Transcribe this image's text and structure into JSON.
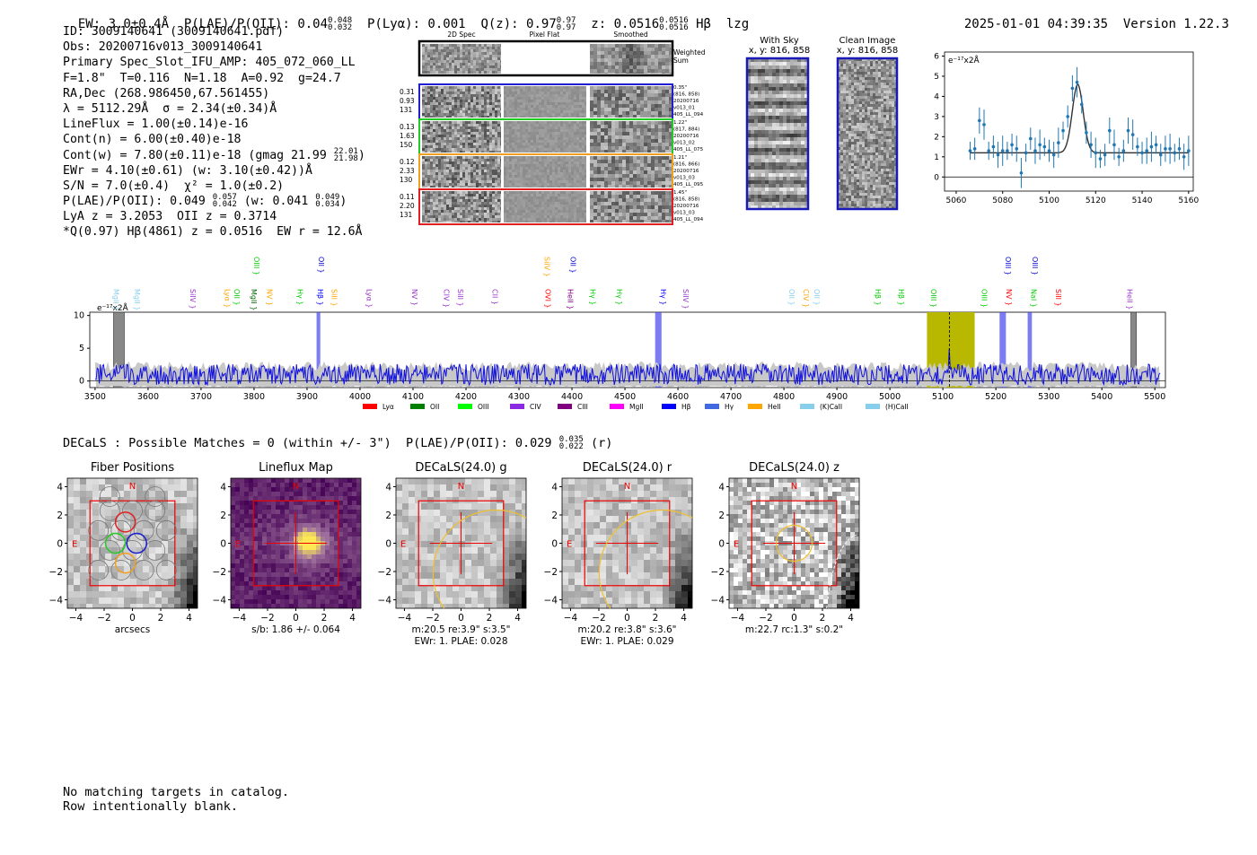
{
  "header": {
    "ew_text": "EW: 3.0±0.4Å",
    "plae_label": "P(LAE)/P(OII):",
    "plae_val": "0.04",
    "plae_hi": "0.048",
    "plae_lo": "0.032",
    "plya": "P(Lyα): 0.001",
    "qz_label": "Q(z):",
    "qz_val": "0.97",
    "qz_hi": "0.97",
    "qz_lo": "0.97",
    "z_label": "z:",
    "z_val": "0.0516",
    "z_hi": "0.0516",
    "z_lo": "0.0516",
    "z_line": "Hβ",
    "tag": "lzg",
    "timestamp": "2025-01-01 04:39:35",
    "version": "Version 1.22.3"
  },
  "info": {
    "id_line": "ID: 3009140641 (3009140641.pdf)",
    "obs_line": "Obs: 20200716v013_3009140641",
    "primary_line": "Primary Spec_Slot_IFU_AMP: 405_072_060_LL",
    "fwhm_line": "F=1.8\"  T=0.116  N=1.18  A=0.92  g=24.7",
    "radec_line": "RA,Dec (268.986450,67.561455)",
    "lambda_line": "λ = 5112.29Å  σ = 2.34(±0.34)Å",
    "lineflux_line": "LineFlux = 1.00(±0.14)e-16",
    "contn_line": "Cont(n) = 6.00(±0.40)e-18",
    "contw_line": "Cont(w) = 7.80(±0.11)e-18 (gmag 21.99",
    "contw_hi": "22.01",
    "contw_lo": "21.98",
    "contw_close": ")",
    "ewr_line": "EWr = 4.10(±0.61) (w: 3.10(±0.42))Å",
    "sn_line": "S/N = 7.0(±0.4)  χ² = 1.0(±0.2)",
    "plae_line": "P(LAE)/P(OII): 0.049",
    "plae_hi": "0.057",
    "plae_lo": "0.042",
    "plae_w": "(w: 0.041",
    "plae_w_hi": "0.049",
    "plae_w_lo": "0.034",
    "plae_close": ")",
    "lya_line": "LyA z = 3.2053  OII z = 0.3714",
    "q_line": "*Q(0.97) Hβ(4861) z = 0.0516  EW r = 12.6Å"
  },
  "cutouts": {
    "col_titles": [
      "2D Spec",
      "Pixel Flat",
      "Smoothed"
    ],
    "weighted_label": "Weighted\nSum",
    "rows": [
      {
        "nums": [
          "0.31",
          "0.93",
          "131"
        ],
        "side": [
          "0.35\"",
          "(816, 858)",
          "20200716",
          "v013_01",
          "405_LL_094"
        ],
        "color": "#1f1fd0"
      },
      {
        "nums": [
          "0.13",
          "1.63",
          "150"
        ],
        "side": [
          "1.22\"",
          "(817, 884)",
          "20200716",
          "v013_02",
          "405_LL_075"
        ],
        "color": "#22cc22"
      },
      {
        "nums": [
          "0.12",
          "2.33",
          "130"
        ],
        "side": [
          "1.21\"",
          "(816, 866)",
          "20200716",
          "v013_03",
          "405_LL_095"
        ],
        "color": "#f0a020"
      },
      {
        "nums": [
          "0.11",
          "2.20",
          "131"
        ],
        "side": [
          "1.45\"",
          "(816, 858)",
          "20200716",
          "v013_03",
          "405_LL_094"
        ],
        "color": "#e02020"
      }
    ]
  },
  "sky_panels": {
    "with_sky_title": "With Sky",
    "with_sky_xy": "x, y: 816, 858",
    "clean_title": "Clean Image",
    "clean_xy": "x, y: 816, 858"
  },
  "zoom_plot": {
    "unit_label": "e⁻¹⁷x2Å",
    "x_ticks": [
      "5060",
      "5080",
      "5100",
      "5120",
      "5140",
      "5160"
    ],
    "y_ticks": [
      "0",
      "1",
      "2",
      "3",
      "4",
      "5",
      "6"
    ]
  },
  "spectrum": {
    "unit_label": "e⁻¹⁷x2Å",
    "x_ticks": [
      "3500",
      "3600",
      "3700",
      "3800",
      "3900",
      "4000",
      "4100",
      "4200",
      "4300",
      "4400",
      "4500",
      "4600",
      "4700",
      "4800",
      "4900",
      "5000",
      "5100",
      "5200",
      "5300",
      "5400",
      "5500"
    ],
    "y_ticks": [
      "0",
      "5",
      "10"
    ],
    "legend": [
      {
        "label": "Lyα",
        "color": "#ff0000"
      },
      {
        "label": "OII",
        "color": "#008000"
      },
      {
        "label": "OIII",
        "color": "#00ff00"
      },
      {
        "label": "CIV",
        "color": "#8a2be2"
      },
      {
        "label": "CIII",
        "color": "#800080"
      },
      {
        "label": "MgII",
        "color": "#ff00ff"
      },
      {
        "label": "Hβ",
        "color": "#0000ff"
      },
      {
        "label": "Hγ",
        "color": "#4169e1"
      },
      {
        "label": "HeII",
        "color": "#ffa500"
      },
      {
        "label": "(K)CaII",
        "color": "#87ceeb"
      },
      {
        "label": "(H)CaII",
        "color": "#87ceeb"
      }
    ],
    "line_marks": [
      {
        "label": "MgII",
        "x": 3530,
        "color": "#87ceeb",
        "row": 2
      },
      {
        "label": "MgII",
        "x": 3570,
        "color": "#87ceeb",
        "row": 2
      },
      {
        "label": "SiIV",
        "x": 3675,
        "color": "#9932cc",
        "row": 2
      },
      {
        "label": "Lyα",
        "x": 3740,
        "color": "#ffa500",
        "row": 2
      },
      {
        "label": "OII",
        "x": 3758,
        "color": "#00cc00",
        "row": 2
      },
      {
        "label": "MgII",
        "x": 3790,
        "color": "#006400",
        "row": 2
      },
      {
        "label": "OIII",
        "x": 3795,
        "color": "#00cc00",
        "row": 1
      },
      {
        "label": "NV",
        "x": 3820,
        "color": "#ffa500",
        "row": 2
      },
      {
        "label": "Hγ",
        "x": 3877,
        "color": "#00cc00",
        "row": 2
      },
      {
        "label": "OII",
        "x": 3917,
        "color": "#0000cd",
        "row": 1
      },
      {
        "label": "Hβ",
        "x": 3915,
        "color": "#0000ff",
        "row": 2
      },
      {
        "label": "SiII",
        "x": 3942,
        "color": "#ffa500",
        "row": 2
      },
      {
        "label": "Lyα",
        "x": 4008,
        "color": "#9932cc",
        "row": 2
      },
      {
        "label": "NV",
        "x": 4093,
        "color": "#9932cc",
        "row": 2
      },
      {
        "label": "CIV",
        "x": 4153,
        "color": "#9932cc",
        "row": 2
      },
      {
        "label": "SiII",
        "x": 4180,
        "color": "#9932cc",
        "row": 2
      },
      {
        "label": "CII",
        "x": 4245,
        "color": "#9932cc",
        "row": 2
      },
      {
        "label": "SiIV",
        "x": 4343,
        "color": "#ffa500",
        "row": 1
      },
      {
        "label": "OVI",
        "x": 4345,
        "color": "#ff0000",
        "row": 2
      },
      {
        "label": "OII",
        "x": 4392,
        "color": "#0000cd",
        "row": 1
      },
      {
        "label": "HeII",
        "x": 4387,
        "color": "#800080",
        "row": 2
      },
      {
        "label": "Hγ",
        "x": 4430,
        "color": "#00cc00",
        "row": 2
      },
      {
        "label": "Hγ",
        "x": 4480,
        "color": "#00cc00",
        "row": 2
      },
      {
        "label": "Hγ",
        "x": 4563,
        "color": "#0000ff",
        "row": 2
      },
      {
        "label": "SiIV",
        "x": 4605,
        "color": "#9932cc",
        "row": 2
      },
      {
        "label": "OII",
        "x": 4805,
        "color": "#87ceeb",
        "row": 2
      },
      {
        "label": "CIV",
        "x": 4832,
        "color": "#ffa500",
        "row": 2
      },
      {
        "label": "OII",
        "x": 4852,
        "color": "#87ceeb",
        "row": 2
      },
      {
        "label": "Hβ",
        "x": 4968,
        "color": "#00cc00",
        "row": 2
      },
      {
        "label": "Hβ",
        "x": 5012,
        "color": "#00cc00",
        "row": 2
      },
      {
        "label": "OIII",
        "x": 5073,
        "color": "#00cc00",
        "row": 2
      },
      {
        "label": "OIII",
        "x": 5168,
        "color": "#00cc00",
        "row": 2
      },
      {
        "label": "OIII",
        "x": 5213,
        "color": "#0000cd",
        "row": 1
      },
      {
        "label": "NV",
        "x": 5215,
        "color": "#ff0000",
        "row": 2
      },
      {
        "label": "OIII",
        "x": 5264,
        "color": "#0000cd",
        "row": 1
      },
      {
        "label": "NaI",
        "x": 5262,
        "color": "#00cc00",
        "row": 2
      },
      {
        "label": "SiII",
        "x": 5308,
        "color": "#ff0000",
        "row": 2
      },
      {
        "label": "HeII",
        "x": 5443,
        "color": "#9932cc",
        "row": 2
      }
    ]
  },
  "decals": {
    "title": "DECaLS : Possible Matches = 0 (within +/- 3\")  P(LAE)/P(OII): 0.029",
    "title_hi": "0.035",
    "title_lo": "0.022",
    "title_tail": "(r)",
    "panels": [
      {
        "title": "Fiber Positions",
        "caption1": "arcsecs",
        "caption2": ""
      },
      {
        "title": "Lineflux Map",
        "caption1": "s/b: 1.86 +/- 0.064",
        "caption2": ""
      },
      {
        "title": "DECaLS(24.0) g",
        "caption1": "m:20.5  re:3.9\"  s:3.5\"",
        "caption2": "EWr: 1. PLAE: 0.028"
      },
      {
        "title": "DECaLS(24.0) r",
        "caption1": "m:20.2  re:3.8\"  s:3.6\"",
        "caption2": "EWr: 1. PLAE: 0.029"
      },
      {
        "title": "DECaLS(24.0) z",
        "caption1": "m:22.7 rc:1.3\"  s:0.2\"",
        "caption2": ""
      }
    ],
    "axis_ticks": [
      "−4",
      "−2",
      "0",
      "2",
      "4"
    ],
    "north": "N",
    "east": "E"
  },
  "footer": {
    "line1": "No matching targets in catalog.",
    "line2": "Row intentionally blank."
  },
  "chart_data": [
    {
      "type": "line",
      "title": "",
      "xlabel": "",
      "ylabel": "e⁻¹⁷x2Å",
      "xlim": [
        3490,
        5520
      ],
      "ylim": [
        -1,
        10.5
      ],
      "emission_peak": {
        "x": 5112.29,
        "y": 3.2
      },
      "highlight_bands": [
        [
          3918,
          3925
        ],
        [
          4557,
          4569
        ],
        [
          5070,
          5160
        ],
        [
          5207,
          5219
        ],
        [
          5260,
          5268
        ]
      ],
      "grey_bands": [
        [
          3535,
          3555
        ],
        [
          5455,
          5465
        ]
      ]
    },
    {
      "type": "scatter",
      "title": "",
      "ylabel": "e⁻¹⁷x2Å",
      "xlim": [
        5055,
        5162
      ],
      "ylim": [
        -0.7,
        6.2
      ],
      "x": [
        5066,
        5068,
        5070,
        5072,
        5074,
        5076,
        5078,
        5080,
        5082,
        5084,
        5086,
        5088,
        5090,
        5092,
        5094,
        5096,
        5098,
        5100,
        5102,
        5104,
        5106,
        5108,
        5110,
        5112,
        5114,
        5116,
        5118,
        5120,
        5122,
        5124,
        5126,
        5128,
        5130,
        5132,
        5134,
        5136,
        5138,
        5140,
        5142,
        5144,
        5146,
        5148,
        5150,
        5152,
        5154,
        5156,
        5158,
        5160
      ],
      "y": [
        1.3,
        1.4,
        2.8,
        2.6,
        1.3,
        1.5,
        1.1,
        1.3,
        1.3,
        1.6,
        1.4,
        0.2,
        1.2,
        1.9,
        1.3,
        1.6,
        1.5,
        1.3,
        1.1,
        1.7,
        2.3,
        3.0,
        4.4,
        4.7,
        3.6,
        2.2,
        1.6,
        1.2,
        0.9,
        1.1,
        2.3,
        1.6,
        1.0,
        1.3,
        2.3,
        2.1,
        1.5,
        1.2,
        1.3,
        1.5,
        1.6,
        1.1,
        1.4,
        1.4,
        1.2,
        1.4,
        1.0,
        1.3
      ],
      "fit": {
        "continuum": 1.2,
        "amplitude": 3.4,
        "center": 5112.29,
        "sigma": 2.34
      }
    }
  ]
}
